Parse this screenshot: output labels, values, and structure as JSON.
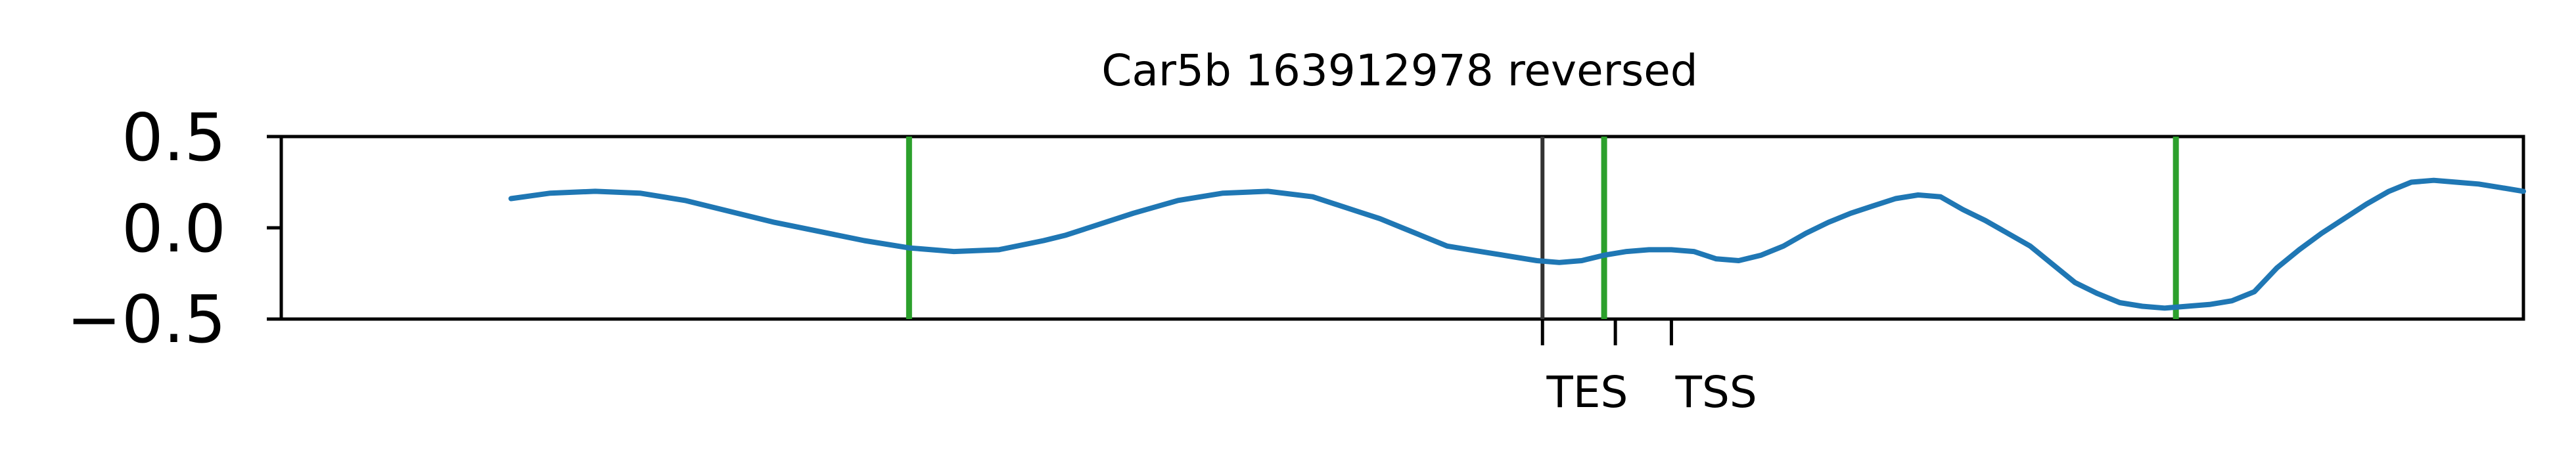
{
  "chart_data": {
    "type": "line",
    "title": "Car5b 163912978 reversed",
    "xlabel": "",
    "ylabel": "",
    "xlim": [
      -1000,
      1000
    ],
    "ylim": [
      -0.5,
      0.5
    ],
    "yticks": [
      0.5,
      0.0,
      -0.5
    ],
    "ytick_labels": [
      "0.5",
      "0.0",
      "−0.5"
    ],
    "grid": false,
    "colors": {
      "line": "#1f77b4",
      "green_markers": "#2ca02c",
      "black_markers": "#333333",
      "frame": "#000000"
    },
    "series": [
      {
        "x": [
          -795,
          -760,
          -720,
          -680,
          -640,
          -600,
          -560,
          -520,
          -480,
          -440,
          -400,
          -360,
          -320,
          -300,
          -280,
          -240,
          -200,
          -160,
          -120,
          -80,
          -40,
          -20,
          0,
          20,
          40,
          60,
          80,
          100,
          120,
          140,
          160,
          180,
          200,
          220,
          240,
          260,
          280,
          300,
          320,
          340,
          360,
          380,
          400,
          420,
          440,
          460,
          480,
          500,
          520,
          540,
          560,
          580,
          600,
          620,
          640,
          660,
          680,
          700,
          720,
          740,
          760,
          780,
          800,
          820,
          840,
          860,
          880,
          900,
          920,
          940,
          960,
          980,
          1000
        ],
        "y": [
          0.16,
          0.19,
          0.2,
          0.19,
          0.15,
          0.09,
          0.03,
          -0.02,
          -0.07,
          -0.11,
          -0.13,
          -0.12,
          -0.07,
          -0.04,
          0.0,
          0.08,
          0.15,
          0.19,
          0.2,
          0.17,
          0.09,
          0.05,
          0.0,
          -0.05,
          -0.1,
          -0.12,
          -0.14,
          -0.16,
          -0.18,
          -0.19,
          -0.18,
          -0.15,
          -0.13,
          -0.12,
          -0.12,
          -0.13,
          -0.17,
          -0.18,
          -0.15,
          -0.1,
          -0.03,
          0.03,
          0.08,
          0.12,
          0.16,
          0.18,
          0.17,
          0.1,
          0.04,
          -0.03,
          -0.1,
          -0.2,
          -0.3,
          -0.36,
          -0.41,
          -0.43,
          -0.44,
          -0.43,
          -0.42,
          -0.4,
          -0.35,
          -0.22,
          -0.12,
          -0.03,
          0.05,
          0.13,
          0.2,
          0.25,
          0.26,
          0.25,
          0.24,
          0.22,
          0.2
        ]
      }
    ],
    "vlines_green_x": [
      -440,
      180,
      690
    ],
    "vlines_black_x": [
      125
    ],
    "markers": [
      {
        "label": "TES",
        "x": 125,
        "label_x": 165
      },
      {
        "label": "",
        "x": 190,
        "label_x": 190
      },
      {
        "label": "TSS",
        "x": 240,
        "label_x": 280
      }
    ]
  }
}
